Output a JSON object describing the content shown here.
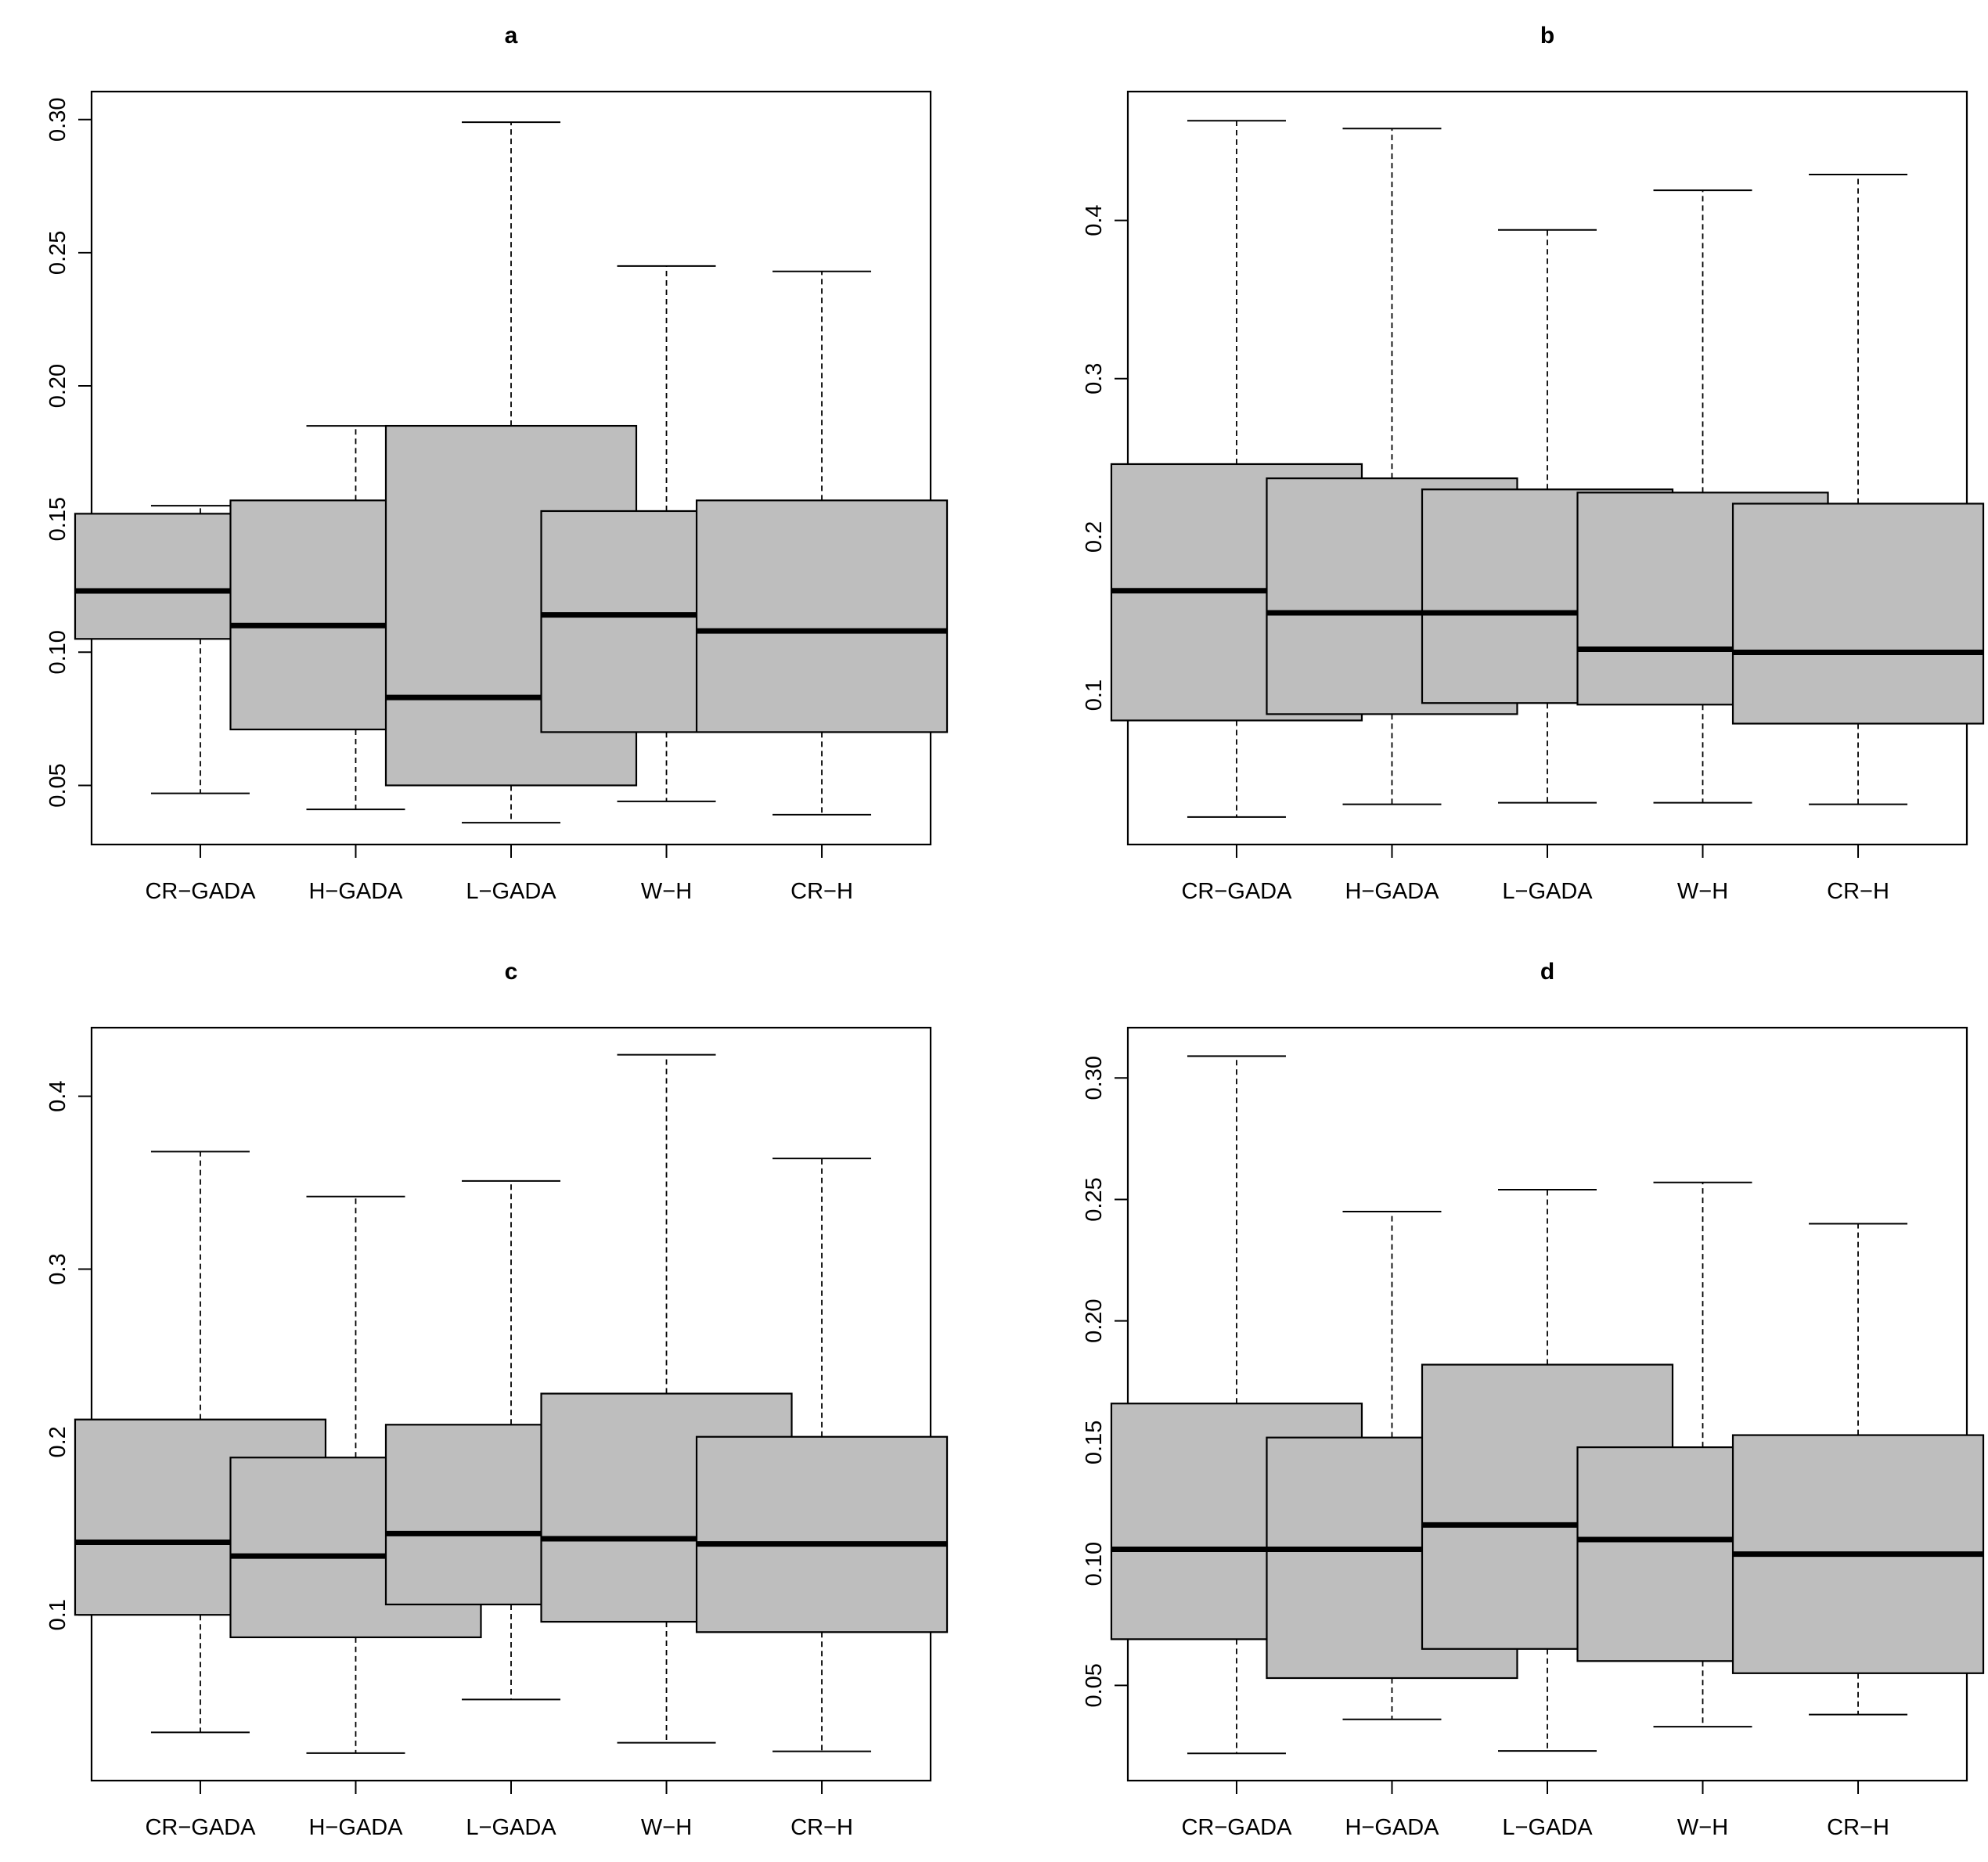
{
  "colors": {
    "box_fill": "#bebebe",
    "line": "#000000",
    "background": "#ffffff"
  },
  "chart_data": [
    {
      "type": "boxplot",
      "title": "a",
      "xlabel": "",
      "ylabel": "",
      "categories": [
        "CR−GADA",
        "H−GADA",
        "L−GADA",
        "W−H",
        "CR−H"
      ],
      "yticks": [
        "0.05",
        "0.10",
        "0.15",
        "0.20",
        "0.25",
        "0.30"
      ],
      "ylim": [
        0.0278,
        0.3105
      ],
      "boxes": [
        {
          "whisker_low": 0.047,
          "q1": 0.105,
          "median": 0.123,
          "q3": 0.152,
          "whisker_high": 0.155
        },
        {
          "whisker_low": 0.041,
          "q1": 0.071,
          "median": 0.11,
          "q3": 0.157,
          "whisker_high": 0.185
        },
        {
          "whisker_low": 0.036,
          "q1": 0.05,
          "median": 0.083,
          "q3": 0.185,
          "whisker_high": 0.299
        },
        {
          "whisker_low": 0.044,
          "q1": 0.07,
          "median": 0.114,
          "q3": 0.153,
          "whisker_high": 0.245
        },
        {
          "whisker_low": 0.039,
          "q1": 0.07,
          "median": 0.108,
          "q3": 0.157,
          "whisker_high": 0.243
        }
      ]
    },
    {
      "type": "boxplot",
      "title": "b",
      "xlabel": "",
      "ylabel": "",
      "categories": [
        "CR−GADA",
        "H−GADA",
        "L−GADA",
        "W−H",
        "CR−H"
      ],
      "yticks": [
        "0.1",
        "0.2",
        "0.3",
        "0.4"
      ],
      "ylim": [
        0.0056,
        0.4814
      ],
      "boxes": [
        {
          "whisker_low": 0.023,
          "q1": 0.084,
          "median": 0.166,
          "q3": 0.246,
          "whisker_high": 0.463
        },
        {
          "whisker_low": 0.031,
          "q1": 0.088,
          "median": 0.152,
          "q3": 0.237,
          "whisker_high": 0.458
        },
        {
          "whisker_low": 0.032,
          "q1": 0.095,
          "median": 0.152,
          "q3": 0.23,
          "whisker_high": 0.394
        },
        {
          "whisker_low": 0.032,
          "q1": 0.094,
          "median": 0.129,
          "q3": 0.228,
          "whisker_high": 0.419
        },
        {
          "whisker_low": 0.031,
          "q1": 0.082,
          "median": 0.127,
          "q3": 0.221,
          "whisker_high": 0.429
        }
      ]
    },
    {
      "type": "boxplot",
      "title": "c",
      "xlabel": "",
      "ylabel": "",
      "categories": [
        "CR−GADA",
        "H−GADA",
        "L−GADA",
        "W−H",
        "CR−H"
      ],
      "yticks": [
        "0.1",
        "0.2",
        "0.3",
        "0.4"
      ],
      "ylim": [
        0.0041,
        0.4397
      ],
      "boxes": [
        {
          "whisker_low": 0.032,
          "q1": 0.1,
          "median": 0.142,
          "q3": 0.213,
          "whisker_high": 0.368
        },
        {
          "whisker_low": 0.02,
          "q1": 0.087,
          "median": 0.134,
          "q3": 0.191,
          "whisker_high": 0.342
        },
        {
          "whisker_low": 0.051,
          "q1": 0.106,
          "median": 0.147,
          "q3": 0.21,
          "whisker_high": 0.351
        },
        {
          "whisker_low": 0.026,
          "q1": 0.096,
          "median": 0.144,
          "q3": 0.228,
          "whisker_high": 0.424
        },
        {
          "whisker_low": 0.021,
          "q1": 0.09,
          "median": 0.141,
          "q3": 0.203,
          "whisker_high": 0.364
        }
      ]
    },
    {
      "type": "boxplot",
      "title": "d",
      "xlabel": "",
      "ylabel": "",
      "categories": [
        "CR−GADA",
        "H−GADA",
        "L−GADA",
        "W−H",
        "CR−H"
      ],
      "yticks": [
        "0.05",
        "0.10",
        "0.15",
        "0.20",
        "0.25",
        "0.30"
      ],
      "ylim": [
        0.0108,
        0.3207
      ],
      "boxes": [
        {
          "whisker_low": 0.022,
          "q1": 0.069,
          "median": 0.106,
          "q3": 0.166,
          "whisker_high": 0.309
        },
        {
          "whisker_low": 0.036,
          "q1": 0.053,
          "median": 0.106,
          "q3": 0.152,
          "whisker_high": 0.245
        },
        {
          "whisker_low": 0.023,
          "q1": 0.065,
          "median": 0.116,
          "q3": 0.182,
          "whisker_high": 0.254
        },
        {
          "whisker_low": 0.033,
          "q1": 0.06,
          "median": 0.11,
          "q3": 0.148,
          "whisker_high": 0.257
        },
        {
          "whisker_low": 0.038,
          "q1": 0.055,
          "median": 0.104,
          "q3": 0.153,
          "whisker_high": 0.24
        }
      ]
    }
  ]
}
